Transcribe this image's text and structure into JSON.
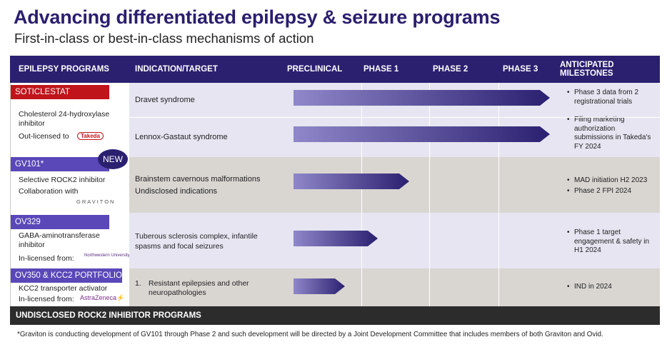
{
  "title": "Advancing differentiated epilepsy & seizure programs",
  "subtitle": "First-in-class or best-in-class mechanisms of action",
  "header": {
    "programs": "EPILEPSY PROGRAMS",
    "indication": "INDICATION/TARGET",
    "preclinical": "PRECLINICAL",
    "phase1": "PHASE 1",
    "phase2": "PHASE 2",
    "phase3": "PHASE 3",
    "milestones": "ANTICIPATED MILESTONES"
  },
  "colors": {
    "navy": "#2b2070",
    "red": "#c0141b",
    "purple": "#5a47b8",
    "grey_row": "#d9d6d2",
    "lavender_row": "#e6e5f1"
  },
  "programs": [
    {
      "tag": "SOTICLESTAT",
      "desc1": "Cholesterol 24-hydroxylase",
      "desc2": "inhibitor",
      "desc3": "Out-licensed to",
      "partner_logo": "Takeda",
      "indications": [
        "Dravet syndrome",
        "Lennox-Gastaut syndrome"
      ],
      "progress": [
        1.0,
        1.0
      ],
      "milestones": [
        "Phase 3 data from 2 registrational trials",
        "Filing marketing authorization submissions in Takeda's FY 2024"
      ]
    },
    {
      "tag": "GV101*",
      "badge": "NEW",
      "desc1": "Selective ROCK2 inhibitor",
      "desc2": "Collaboration with",
      "partner_logo": "GRAVITON",
      "indications": [
        "Brainstem cavernous malformations",
        "Undisclosed indications"
      ],
      "progress": [
        0.45
      ],
      "milestones": [
        "MAD initiation H2 2023",
        "Phase 2 FPI 2024"
      ]
    },
    {
      "tag": "OV329",
      "desc1": "GABA-aminotransferase",
      "desc2": "inhibitor",
      "desc3": "In-licensed from:",
      "partner_logo": "Northwestern University",
      "indications": [
        "Tuberous sclerosis complex, infantile",
        "spasms and focal seizures"
      ],
      "progress": [
        0.33
      ],
      "milestones": [
        "Phase 1 target engagement & safety in H1 2024"
      ]
    },
    {
      "tag": "OV350 & KCC2 PORTFOLIO",
      "desc1": "KCC2 transporter activator",
      "desc3": "In-licensed from:",
      "partner_logo": "AstraZeneca",
      "indications": [
        "1.",
        "Resistant epilepsies and other",
        "neuropathologies"
      ],
      "progress": [
        0.2
      ],
      "milestones": [
        "IND in 2024"
      ]
    }
  ],
  "footer_bar": "UNDISCLOSED ROCK2 INHIBITOR PROGRAMS",
  "footnote": "*Graviton is conducting development of GV101 through Phase 2 and such development will be directed by a Joint Development Committee that includes members of both Graviton and Ovid."
}
